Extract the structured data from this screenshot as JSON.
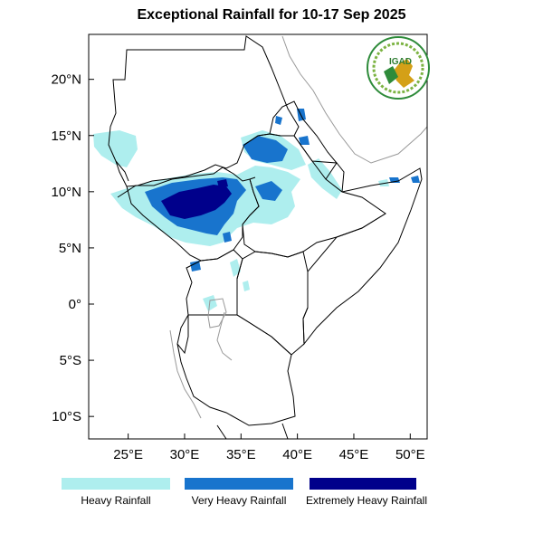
{
  "title": "Exceptional Rainfall for 10-17 Sep 2025",
  "logo": {
    "text": "IGAD",
    "colors": {
      "ring": "#2e8b3a",
      "text": "#2e7d32",
      "map": "#d4a017"
    }
  },
  "axes": {
    "lon_min": 21.5,
    "lon_max": 51.5,
    "lat_min": -12,
    "lat_max": 24,
    "x_ticks": [
      {
        "value": 25,
        "label": "25°E"
      },
      {
        "value": 30,
        "label": "30°E"
      },
      {
        "value": 35,
        "label": "35°E"
      },
      {
        "value": 40,
        "label": "40°E"
      },
      {
        "value": 45,
        "label": "45°E"
      },
      {
        "value": 50,
        "label": "50°E"
      }
    ],
    "y_ticks": [
      {
        "value": 20,
        "label": "20°N"
      },
      {
        "value": 15,
        "label": "15°N"
      },
      {
        "value": 10,
        "label": "10°N"
      },
      {
        "value": 5,
        "label": "5°N"
      },
      {
        "value": 0,
        "label": "0°"
      },
      {
        "value": -5,
        "label": "5°S"
      },
      {
        "value": -10,
        "label": "10°S"
      }
    ]
  },
  "legend": [
    {
      "label": "Heavy Rainfall",
      "color": "#aeeeee"
    },
    {
      "label": "Very Heavy Rainfall",
      "color": "#1874cd"
    },
    {
      "label": "Extremely Heavy Rainfall",
      "color": "#00008b"
    }
  ]
}
